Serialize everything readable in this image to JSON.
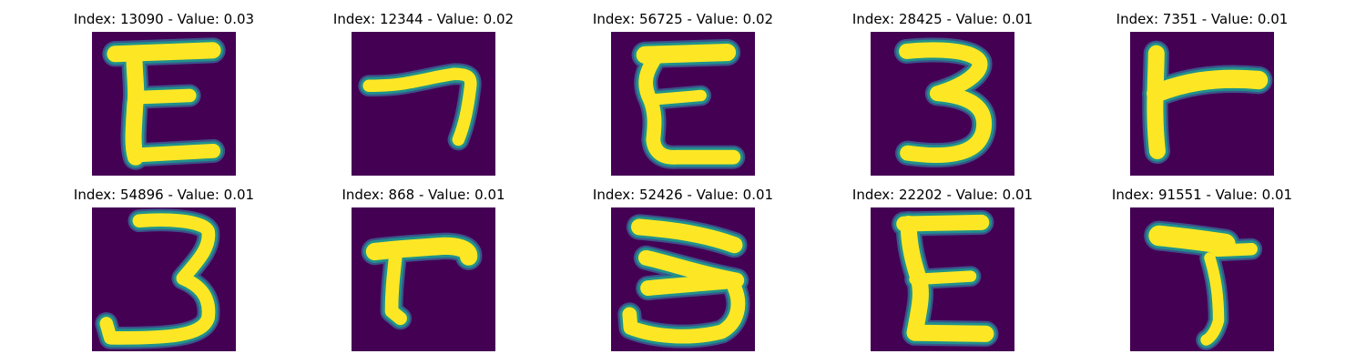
{
  "colors": {
    "background": "#440154",
    "stroke_core": "#fde725",
    "stroke_edge_mid": "#21918c",
    "stroke_edge_outer": "#3b528b"
  },
  "chart_data": {
    "type": "image-grid",
    "colormap": "viridis",
    "panels": [
      {
        "title": "Index: 13090 - Value: 0.03",
        "index": 13090,
        "value": 0.03,
        "glyph": "E"
      },
      {
        "title": "Index: 12344 - Value: 0.02",
        "index": 12344,
        "value": 0.02,
        "glyph": "7"
      },
      {
        "title": "Index: 56725 - Value: 0.02",
        "index": 56725,
        "value": 0.02,
        "glyph": "E"
      },
      {
        "title": "Index: 28425 - Value: 0.01",
        "index": 28425,
        "value": 0.01,
        "glyph": "3"
      },
      {
        "title": "Index: 7351 - Value: 0.01",
        "index": 7351,
        "value": 0.01,
        "glyph": "r"
      },
      {
        "title": "Index: 54896 - Value: 0.01",
        "index": 54896,
        "value": 0.01,
        "glyph": "3"
      },
      {
        "title": "Index: 868 - Value: 0.01",
        "index": 868,
        "value": 0.01,
        "glyph": "r"
      },
      {
        "title": "Index: 52426 - Value: 0.01",
        "index": 52426,
        "value": 0.01,
        "glyph": "3"
      },
      {
        "title": "Index: 22202 - Value: 0.01",
        "index": 22202,
        "value": 0.01,
        "glyph": "E"
      },
      {
        "title": "Index: 91551 - Value: 0.01",
        "index": 91551,
        "value": 0.01,
        "glyph": "5"
      }
    ]
  }
}
